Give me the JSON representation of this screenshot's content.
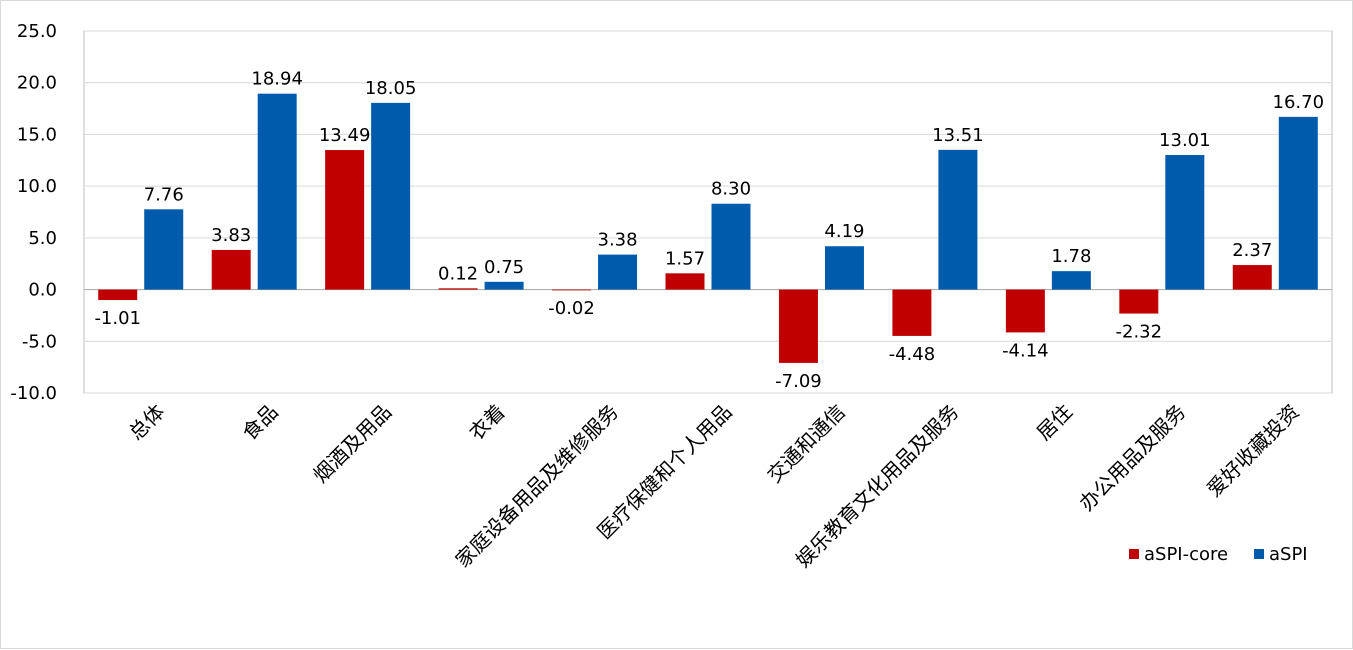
{
  "chart_data": {
    "type": "bar",
    "title": "",
    "xlabel": "",
    "ylabel": "",
    "ylim": [
      -10,
      25
    ],
    "yticks": [
      -10,
      -5,
      0,
      5,
      10,
      15,
      20,
      25
    ],
    "ytick_labels": [
      "-10.0",
      "-5.0",
      "0.0",
      "5.0",
      "10.0",
      "15.0",
      "20.0",
      "25.0"
    ],
    "grid": true,
    "legend_position": "bottom-right",
    "categories": [
      "总体",
      "食品",
      "烟酒及用品",
      "衣着",
      "家庭设备用品及维修服务",
      "医疗保健和个人用品",
      "交通和通信",
      "娱乐教育文化用品及服务",
      "居住",
      "办公用品及服务",
      "爱好收藏投资"
    ],
    "series": [
      {
        "name": "aSPI-core",
        "color": "#c00000",
        "values": [
          -1.01,
          3.83,
          13.49,
          0.12,
          -0.02,
          1.57,
          -7.09,
          -4.48,
          -4.14,
          -2.32,
          2.37
        ],
        "labels": [
          "-1.01",
          "3.83",
          "13.49",
          "0.12",
          "-0.02",
          "1.57",
          "-7.09",
          "-4.48",
          "-4.14",
          "-2.32",
          "2.37"
        ]
      },
      {
        "name": "aSPI",
        "color": "#005bac",
        "values": [
          7.76,
          18.94,
          18.05,
          0.75,
          3.38,
          8.3,
          4.19,
          13.51,
          1.78,
          13.01,
          16.7
        ],
        "labels": [
          "7.76",
          "18.94",
          "18.05",
          "0.75",
          "3.38",
          "8.30",
          "4.19",
          "13.51",
          "1.78",
          "13.01",
          "16.70"
        ]
      }
    ]
  }
}
